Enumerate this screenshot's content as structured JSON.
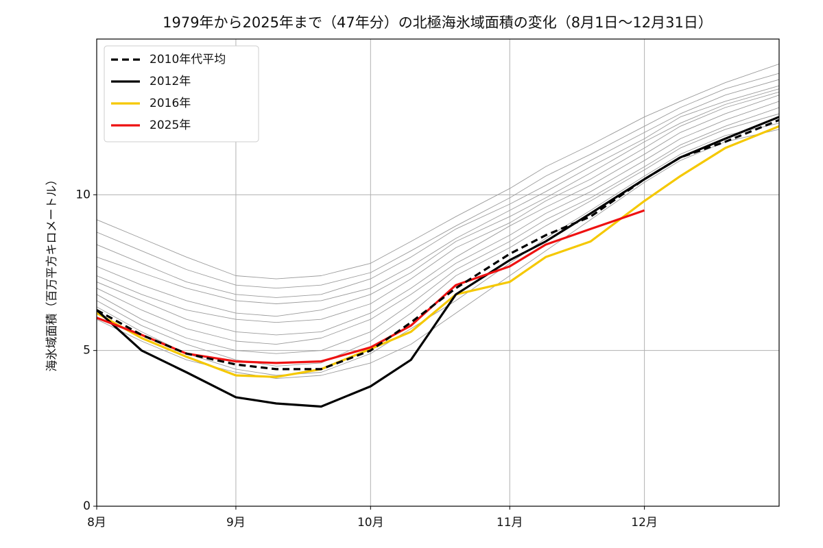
{
  "chart_data": {
    "type": "line",
    "title": "1979年から2025年まで（47年分）の北極海氷域面積の変化（8月1日〜12月31日）",
    "y_label": "海氷域面積（百万平方キロメートル）",
    "x": [
      0,
      10,
      20,
      31,
      40,
      50,
      61,
      70,
      80,
      92,
      100,
      110,
      122,
      130,
      140,
      152
    ],
    "xlim": [
      0,
      152
    ],
    "xticks": [
      {
        "value": 0,
        "label": "8月"
      },
      {
        "value": 31,
        "label": "9月"
      },
      {
        "value": 61,
        "label": "10月"
      },
      {
        "value": 92,
        "label": "11月"
      },
      {
        "value": 122,
        "label": "12月"
      }
    ],
    "ylim": [
      0,
      15
    ],
    "yticks": [
      0,
      5,
      10
    ],
    "grid": true,
    "legend": "upper left",
    "background_color": "#9a9a9a",
    "background_series": [
      {
        "values": [
          9.2,
          8.6,
          8.0,
          7.4,
          7.3,
          7.4,
          7.8,
          8.5,
          9.3,
          10.2,
          10.9,
          11.6,
          12.5,
          13.0,
          13.6,
          14.2
        ]
      },
      {
        "values": [
          8.8,
          8.2,
          7.6,
          7.1,
          7.0,
          7.1,
          7.5,
          8.2,
          9.0,
          9.9,
          10.6,
          11.3,
          12.2,
          12.8,
          13.4,
          13.9
        ]
      },
      {
        "values": [
          8.4,
          7.8,
          7.2,
          6.8,
          6.7,
          6.8,
          7.3,
          8.0,
          8.9,
          9.7,
          10.3,
          11.1,
          12.0,
          12.6,
          13.2,
          13.7
        ]
      },
      {
        "values": [
          8.0,
          7.5,
          7.0,
          6.6,
          6.5,
          6.6,
          7.0,
          7.7,
          8.6,
          9.5,
          10.1,
          10.9,
          11.8,
          12.5,
          13.0,
          13.5
        ]
      },
      {
        "values": [
          7.7,
          7.1,
          6.6,
          6.2,
          6.1,
          6.3,
          6.8,
          7.5,
          8.5,
          9.3,
          9.9,
          10.7,
          11.7,
          12.3,
          12.9,
          13.4
        ]
      },
      {
        "values": [
          7.4,
          6.8,
          6.3,
          6.0,
          5.9,
          6.0,
          6.5,
          7.3,
          8.3,
          9.1,
          9.8,
          10.5,
          11.5,
          12.2,
          12.8,
          13.3
        ]
      },
      {
        "values": [
          7.2,
          6.6,
          6.0,
          5.6,
          5.5,
          5.6,
          6.2,
          7.0,
          8.0,
          9.0,
          9.6,
          10.3,
          11.3,
          12.0,
          12.6,
          13.2
        ]
      },
      {
        "values": [
          7.0,
          6.3,
          5.7,
          5.3,
          5.2,
          5.4,
          6.0,
          6.8,
          7.8,
          8.7,
          9.4,
          10.1,
          11.1,
          11.8,
          12.4,
          13.0
        ]
      },
      {
        "values": [
          6.8,
          6.0,
          5.4,
          5.0,
          4.9,
          5.0,
          5.6,
          6.5,
          7.6,
          8.5,
          9.2,
          9.9,
          10.9,
          11.6,
          12.2,
          12.8
        ]
      },
      {
        "values": [
          6.6,
          5.8,
          5.2,
          4.7,
          4.5,
          4.6,
          5.3,
          6.2,
          7.4,
          8.3,
          9.0,
          9.8,
          10.8,
          11.5,
          12.1,
          12.6
        ]
      },
      {
        "values": [
          6.4,
          5.6,
          4.9,
          4.4,
          4.2,
          4.3,
          4.9,
          5.7,
          6.6,
          7.8,
          8.6,
          9.5,
          10.6,
          11.3,
          11.9,
          12.3
        ]
      },
      {
        "values": [
          6.0,
          5.3,
          4.7,
          4.3,
          4.1,
          4.2,
          4.6,
          5.2,
          6.2,
          7.4,
          8.2,
          9.2,
          10.4,
          11.1,
          11.7,
          12.1
        ]
      }
    ],
    "series": [
      {
        "name": "2010年代平均",
        "color": "#000000",
        "dashed": true,
        "values": [
          6.3,
          5.5,
          4.9,
          4.55,
          4.4,
          4.4,
          5.0,
          5.9,
          7.0,
          8.1,
          8.7,
          9.3,
          10.5,
          11.2,
          11.7,
          12.4
        ]
      },
      {
        "name": "2012年",
        "color": "#000000",
        "values": [
          6.3,
          5.0,
          4.3,
          3.5,
          3.3,
          3.2,
          3.85,
          4.7,
          6.8,
          7.9,
          8.5,
          9.4,
          10.5,
          11.2,
          11.8,
          12.5
        ]
      },
      {
        "name": "2016年",
        "color": "#f5c800",
        "values": [
          6.2,
          5.4,
          4.8,
          4.2,
          4.15,
          4.4,
          5.05,
          5.6,
          6.8,
          7.2,
          8.0,
          8.5,
          9.8,
          10.6,
          11.5,
          12.2
        ]
      },
      {
        "name": "2025年",
        "color": "#ee1111",
        "values": [
          6.05,
          5.5,
          4.9,
          4.65,
          4.6,
          4.65,
          5.1,
          5.8,
          7.1,
          7.7,
          8.4,
          8.9,
          9.5,
          null,
          null,
          null
        ]
      }
    ]
  }
}
